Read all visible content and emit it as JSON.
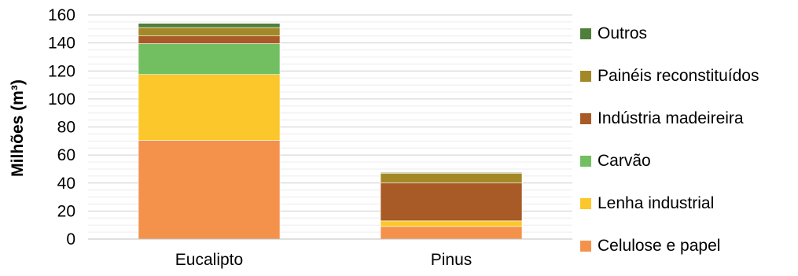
{
  "chart_data": {
    "type": "bar",
    "stacked": true,
    "categories": [
      "Eucalipto",
      "Pinus"
    ],
    "ylabel": "Milhões (m³)",
    "ylim": [
      0,
      160
    ],
    "yticks": [
      0,
      20,
      40,
      60,
      80,
      100,
      120,
      140,
      160
    ],
    "grid": true,
    "legend_position": "right",
    "series": [
      {
        "name": "Celulose e papel",
        "color": "#F4924C",
        "values": [
          70.5,
          9
        ]
      },
      {
        "name": "Lenha industrial",
        "color": "#FBC72A",
        "values": [
          47,
          4
        ]
      },
      {
        "name": "Carvão",
        "color": "#72BF61",
        "values": [
          22,
          0
        ]
      },
      {
        "name": "Indústria madeireira",
        "color": "#A85A27",
        "values": [
          5.5,
          27
        ]
      },
      {
        "name": "Painéis reconstituídos",
        "color": "#A38828",
        "values": [
          6,
          7
        ]
      },
      {
        "name": "Outros",
        "color": "#4E7F3B",
        "values": [
          3,
          0.5
        ]
      }
    ]
  }
}
